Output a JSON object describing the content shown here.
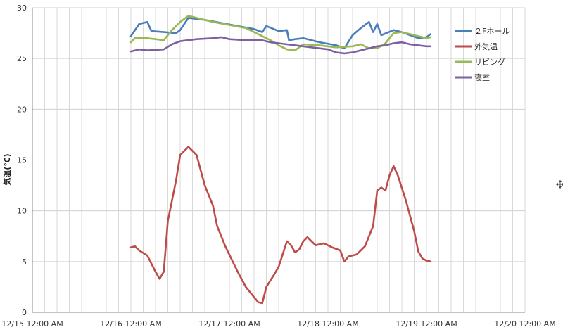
{
  "chart_data": {
    "type": "line",
    "ylabel": "気温(℃)",
    "ylim": [
      0,
      30
    ],
    "y_ticks": [
      "0",
      "5",
      "10",
      "15",
      "20",
      "25",
      "30"
    ],
    "x_range": [
      "12/15 00:00",
      "12/20 00:00"
    ],
    "x_ticks": [
      "12/15 12:00 AM",
      "12/16 12:00 AM",
      "12/17 12:00 AM",
      "12/18 12:00 AM",
      "12/19 12:00 AM",
      "12/20 12:00 AM"
    ],
    "grid": true,
    "legend_position": "right",
    "series": [
      {
        "name": "２Fホール",
        "color": "#4a7ebb",
        "points": [
          [
            "12/16 00:00",
            27.2
          ],
          [
            "12/16 02:00",
            28.4
          ],
          [
            "12/16 04:00",
            28.6
          ],
          [
            "12/16 05:00",
            27.7
          ],
          [
            "12/16 08:00",
            27.6
          ],
          [
            "12/16 11:00",
            27.5
          ],
          [
            "12/16 12:00",
            27.8
          ],
          [
            "12/16 14:00",
            29.0
          ],
          [
            "12/16 18:00",
            28.8
          ],
          [
            "12/16 22:00",
            28.5
          ],
          [
            "12/17 02:00",
            28.2
          ],
          [
            "12/17 06:00",
            27.9
          ],
          [
            "12/17 08:00",
            27.6
          ],
          [
            "12/17 09:00",
            28.2
          ],
          [
            "12/17 12:00",
            27.7
          ],
          [
            "12/17 14:00",
            27.8
          ],
          [
            "12/17 14:30",
            26.8
          ],
          [
            "12/17 16:00",
            26.9
          ],
          [
            "12/17 18:00",
            27.0
          ],
          [
            "12/17 22:00",
            26.6
          ],
          [
            "12/18 02:00",
            26.3
          ],
          [
            "12/18 04:00",
            26.0
          ],
          [
            "12/18 06:00",
            27.3
          ],
          [
            "12/18 08:00",
            28.0
          ],
          [
            "12/18 10:00",
            28.6
          ],
          [
            "12/18 11:00",
            27.6
          ],
          [
            "12/18 12:00",
            28.4
          ],
          [
            "12/18 13:00",
            27.3
          ],
          [
            "12/18 16:00",
            27.8
          ],
          [
            "12/18 18:00",
            27.6
          ],
          [
            "12/18 22:00",
            27.0
          ],
          [
            "12/19 00:00",
            27.1
          ],
          [
            "12/19 01:00",
            27.4
          ]
        ]
      },
      {
        "name": "外気温",
        "color": "#be4b48",
        "points": [
          [
            "12/16 00:00",
            6.4
          ],
          [
            "12/16 01:00",
            6.5
          ],
          [
            "12/16 02:00",
            6.1
          ],
          [
            "12/16 04:00",
            5.6
          ],
          [
            "12/16 06:00",
            4.0
          ],
          [
            "12/16 07:00",
            3.3
          ],
          [
            "12/16 08:00",
            4.0
          ],
          [
            "12/16 09:00",
            9.0
          ],
          [
            "12/16 11:00",
            13.0
          ],
          [
            "12/16 12:00",
            15.5
          ],
          [
            "12/16 14:00",
            16.3
          ],
          [
            "12/16 16:00",
            15.5
          ],
          [
            "12/16 18:00",
            12.5
          ],
          [
            "12/16 20:00",
            10.5
          ],
          [
            "12/16 21:00",
            8.5
          ],
          [
            "12/16 23:00",
            6.5
          ],
          [
            "12/17 02:00",
            4.0
          ],
          [
            "12/17 04:00",
            2.5
          ],
          [
            "12/17 06:00",
            1.5
          ],
          [
            "12/17 07:00",
            1.0
          ],
          [
            "12/17 08:00",
            0.9
          ],
          [
            "12/17 09:00",
            2.5
          ],
          [
            "12/17 11:00",
            3.8
          ],
          [
            "12/17 12:00",
            4.5
          ],
          [
            "12/17 14:00",
            7.0
          ],
          [
            "12/17 15:00",
            6.6
          ],
          [
            "12/17 16:00",
            5.9
          ],
          [
            "12/17 17:00",
            6.2
          ],
          [
            "12/17 18:00",
            7.0
          ],
          [
            "12/17 19:00",
            7.4
          ],
          [
            "12/17 21:00",
            6.6
          ],
          [
            "12/17 23:00",
            6.8
          ],
          [
            "12/18 01:00",
            6.4
          ],
          [
            "12/18 03:00",
            6.1
          ],
          [
            "12/18 04:00",
            5.0
          ],
          [
            "12/18 05:00",
            5.5
          ],
          [
            "12/18 07:00",
            5.7
          ],
          [
            "12/18 09:00",
            6.5
          ],
          [
            "12/18 11:00",
            8.5
          ],
          [
            "12/18 12:00",
            12.0
          ],
          [
            "12/18 13:00",
            12.3
          ],
          [
            "12/18 14:00",
            12.0
          ],
          [
            "12/18 15:00",
            13.5
          ],
          [
            "12/18 16:00",
            14.4
          ],
          [
            "12/18 17:00",
            13.5
          ],
          [
            "12/18 19:00",
            11.0
          ],
          [
            "12/18 21:00",
            8.0
          ],
          [
            "12/18 22:00",
            6.0
          ],
          [
            "12/18 23:00",
            5.3
          ],
          [
            "12/19 00:00",
            5.1
          ],
          [
            "12/19 01:00",
            5.0
          ]
        ]
      },
      {
        "name": "リビング",
        "color": "#98b954",
        "points": [
          [
            "12/16 00:00",
            26.6
          ],
          [
            "12/16 01:00",
            27.0
          ],
          [
            "12/16 04:00",
            27.0
          ],
          [
            "12/16 06:00",
            26.9
          ],
          [
            "12/16 08:00",
            26.8
          ],
          [
            "12/16 10:00",
            27.8
          ],
          [
            "12/16 12:00",
            28.6
          ],
          [
            "12/16 14:00",
            29.2
          ],
          [
            "12/16 16:00",
            29.0
          ],
          [
            "12/16 20:00",
            28.6
          ],
          [
            "12/17 00:00",
            28.3
          ],
          [
            "12/17 04:00",
            28.0
          ],
          [
            "12/17 06:00",
            27.6
          ],
          [
            "12/17 08:00",
            27.2
          ],
          [
            "12/17 10:00",
            26.8
          ],
          [
            "12/17 12:00",
            26.3
          ],
          [
            "12/17 14:00",
            25.9
          ],
          [
            "12/17 16:00",
            25.8
          ],
          [
            "12/17 18:00",
            26.4
          ],
          [
            "12/17 22:00",
            26.3
          ],
          [
            "12/18 02:00",
            26.1
          ],
          [
            "12/18 06:00",
            26.2
          ],
          [
            "12/18 08:00",
            26.4
          ],
          [
            "12/18 10:00",
            26.0
          ],
          [
            "12/18 12:00",
            26.0
          ],
          [
            "12/18 14:00",
            26.5
          ],
          [
            "12/18 16:00",
            27.5
          ],
          [
            "12/18 18:00",
            27.6
          ],
          [
            "12/18 22:00",
            27.2
          ],
          [
            "12/19 00:00",
            27.0
          ],
          [
            "12/19 01:00",
            27.1
          ]
        ]
      },
      {
        "name": "寝室",
        "color": "#7d60a0",
        "points": [
          [
            "12/16 00:00",
            25.7
          ],
          [
            "12/16 02:00",
            25.9
          ],
          [
            "12/16 04:00",
            25.8
          ],
          [
            "12/16 08:00",
            25.9
          ],
          [
            "12/16 10:00",
            26.4
          ],
          [
            "12/16 12:00",
            26.7
          ],
          [
            "12/16 16:00",
            26.9
          ],
          [
            "12/16 20:00",
            27.0
          ],
          [
            "12/16 22:00",
            27.1
          ],
          [
            "12/17 00:00",
            26.9
          ],
          [
            "12/17 04:00",
            26.8
          ],
          [
            "12/17 08:00",
            26.8
          ],
          [
            "12/17 10:00",
            26.6
          ],
          [
            "12/17 12:00",
            26.5
          ],
          [
            "12/17 14:00",
            26.4
          ],
          [
            "12/17 16:00",
            26.3
          ],
          [
            "12/17 20:00",
            26.1
          ],
          [
            "12/18 00:00",
            25.9
          ],
          [
            "12/18 02:00",
            25.6
          ],
          [
            "12/18 04:00",
            25.5
          ],
          [
            "12/18 06:00",
            25.6
          ],
          [
            "12/18 10:00",
            26.0
          ],
          [
            "12/18 12:00",
            26.2
          ],
          [
            "12/18 14:00",
            26.3
          ],
          [
            "12/18 16:00",
            26.5
          ],
          [
            "12/18 18:00",
            26.6
          ],
          [
            "12/18 20:00",
            26.4
          ],
          [
            "12/18 22:00",
            26.3
          ],
          [
            "12/19 00:00",
            26.2
          ],
          [
            "12/19 01:00",
            26.2
          ]
        ]
      }
    ]
  }
}
